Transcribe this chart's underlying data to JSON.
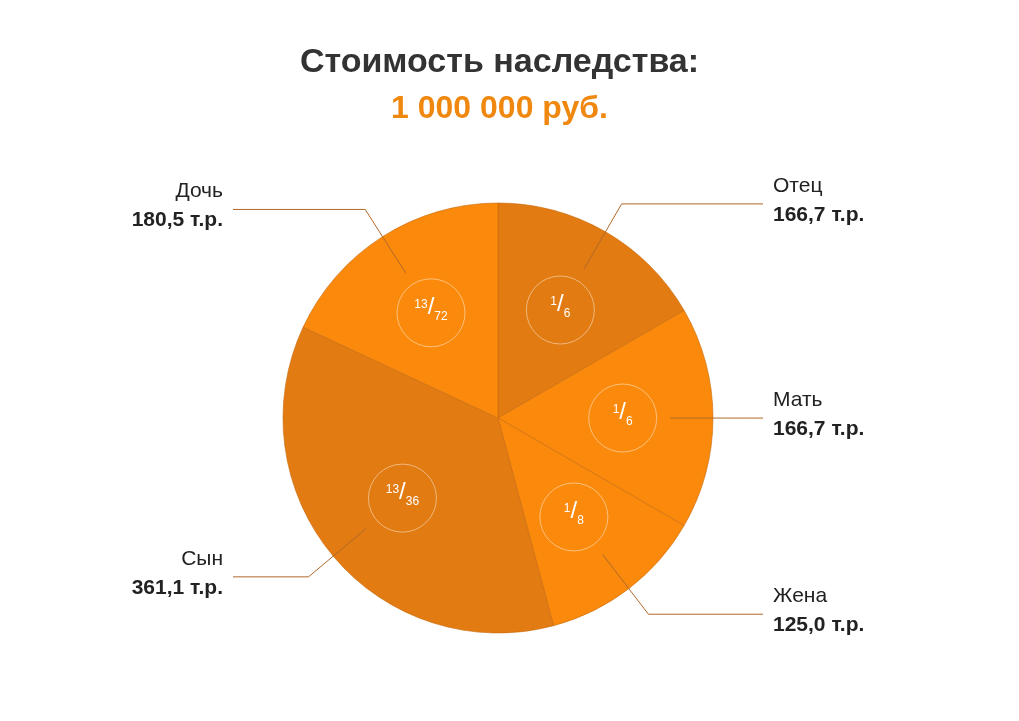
{
  "chart_data": {
    "type": "pie",
    "title": "Стоимость наследства:",
    "subtitle": "1 000 000 руб.",
    "categories": [
      "Отец",
      "Мать",
      "Жена",
      "Сын",
      "Дочь"
    ],
    "values": [
      166.7,
      166.7,
      125.0,
      361.1,
      180.5
    ],
    "colors": [
      "#e27b12",
      "#fb8a0c",
      "#fb8a0c",
      "#e27b12",
      "#fb8a0c"
    ],
    "value_labels": [
      "166,7 т.р.",
      "166,7 т.р.",
      "125,0 т.р.",
      "361,1 т.р.",
      "180,5 т.р."
    ],
    "annotations": [
      {
        "text": "1/6",
        "x": "Отец"
      },
      {
        "text": "1/6",
        "x": "Мать"
      },
      {
        "text": "1/8",
        "x": "Жена"
      },
      {
        "text": "13/36",
        "x": "Сын"
      },
      {
        "text": "13/72",
        "x": "Дочь"
      }
    ]
  }
}
